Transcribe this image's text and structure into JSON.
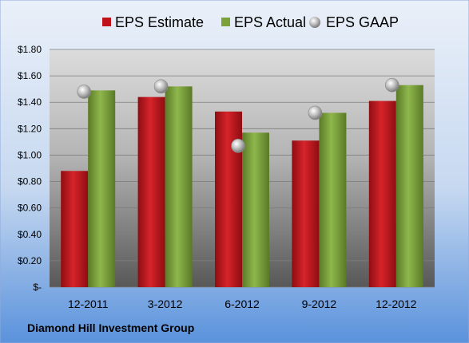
{
  "chart_data": {
    "type": "bar",
    "categories": [
      "12-2011",
      "3-2012",
      "6-2012",
      "9-2012",
      "12-2012"
    ],
    "series": [
      {
        "name": "EPS Estimate",
        "kind": "bar",
        "color": "#c0121b",
        "values": [
          0.88,
          1.44,
          1.33,
          1.11,
          1.41
        ]
      },
      {
        "name": "EPS Actual",
        "kind": "bar",
        "color": "#7aa13a",
        "values": [
          1.49,
          1.52,
          1.17,
          1.32,
          1.53
        ]
      },
      {
        "name": "EPS GAAP",
        "kind": "marker",
        "color": "#a9a9a9",
        "values": [
          1.48,
          1.52,
          1.07,
          1.32,
          1.53
        ]
      }
    ],
    "ylim": [
      0,
      1.8
    ],
    "y_ticks": [
      0,
      0.2,
      0.4,
      0.6,
      0.8,
      1.0,
      1.2,
      1.4,
      1.6,
      1.8
    ],
    "y_tick_labels": [
      "$-",
      "$0.20",
      "$0.40",
      "$0.60",
      "$0.80",
      "$1.00",
      "$1.20",
      "$1.40",
      "$1.60",
      "$1.80"
    ],
    "grid": true,
    "legend_position": "top"
  },
  "footer": {
    "company": "Diamond Hill Investment Group"
  },
  "colors": {
    "background_top": "#e4ecf7",
    "background_bottom": "#5b93dd",
    "plot_top": "#d9d9d9",
    "plot_bottom": "#5a5a5a"
  }
}
